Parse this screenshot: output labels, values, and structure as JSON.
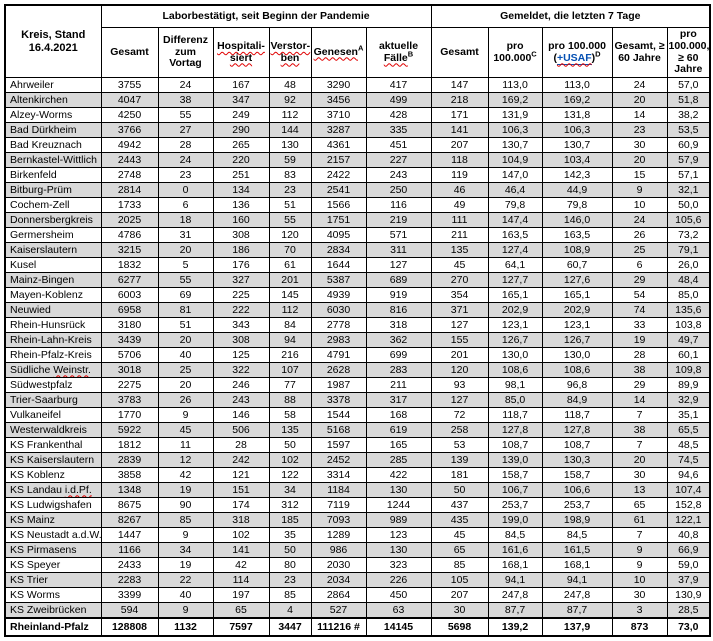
{
  "title_cell": "Kreis, Stand 16.4.2021",
  "groups": {
    "pandemic": "Laborbestätigt, seit Beginn der Pandemie",
    "last7": "Gemeldet, die letzten 7 Tage"
  },
  "columns": [
    {
      "label": "Gesamt"
    },
    {
      "label": "Differenz zum Vortag"
    },
    {
      "label": "Hospitali-siert",
      "squiggle": true
    },
    {
      "label": "Verstor-ben",
      "squiggle": true
    },
    {
      "label": "Genesen",
      "sup": "A",
      "squiggle": true
    },
    {
      "label": "aktuelle",
      "label2": "Fälle",
      "sup": "B",
      "squiggle": true
    },
    {
      "label": "Gesamt"
    },
    {
      "label": "pro 100.000",
      "sup": "C"
    },
    {
      "label": "pro 100.000",
      "open": "(",
      "link": "+USAF",
      "close": ")",
      "sup": "D"
    },
    {
      "label": "Gesamt, ≥ 60 Jahre"
    },
    {
      "label": "pro 100.000, ≥ 60 Jahre"
    }
  ],
  "rows": [
    {
      "n": "Ahrweiler",
      "v": [
        "3755",
        "24",
        "167",
        "48",
        "3290",
        "417",
        "147",
        "113,0",
        "113,0",
        "24",
        "57,0"
      ]
    },
    {
      "n": "Altenkirchen",
      "v": [
        "4047",
        "38",
        "347",
        "92",
        "3456",
        "499",
        "218",
        "169,2",
        "169,2",
        "20",
        "51,8"
      ]
    },
    {
      "n": "Alzey-Worms",
      "v": [
        "4250",
        "55",
        "249",
        "112",
        "3710",
        "428",
        "171",
        "131,9",
        "131,8",
        "14",
        "38,2"
      ]
    },
    {
      "n": "Bad Dürkheim",
      "v": [
        "3766",
        "27",
        "290",
        "144",
        "3287",
        "335",
        "141",
        "106,3",
        "106,3",
        "23",
        "53,5"
      ]
    },
    {
      "n": "Bad Kreuznach",
      "v": [
        "4942",
        "28",
        "265",
        "130",
        "4361",
        "451",
        "207",
        "130,7",
        "130,7",
        "30",
        "60,9"
      ]
    },
    {
      "n": "Bernkastel-Wittlich",
      "v": [
        "2443",
        "24",
        "220",
        "59",
        "2157",
        "227",
        "118",
        "104,9",
        "103,4",
        "20",
        "57,9"
      ]
    },
    {
      "n": "Birkenfeld",
      "v": [
        "2748",
        "23",
        "251",
        "83",
        "2422",
        "243",
        "119",
        "147,0",
        "142,3",
        "15",
        "57,1"
      ]
    },
    {
      "n": "Bitburg-Prüm",
      "v": [
        "2814",
        "0",
        "134",
        "23",
        "2541",
        "250",
        "46",
        "46,4",
        "44,9",
        "9",
        "32,1"
      ]
    },
    {
      "n": "Cochem-Zell",
      "v": [
        "1733",
        "6",
        "136",
        "51",
        "1566",
        "116",
        "49",
        "79,8",
        "79,8",
        "10",
        "50,0"
      ]
    },
    {
      "n": "Donnersbergkreis",
      "v": [
        "2025",
        "18",
        "160",
        "55",
        "1751",
        "219",
        "111",
        "147,4",
        "146,0",
        "24",
        "105,6"
      ]
    },
    {
      "n": "Germersheim",
      "v": [
        "4786",
        "31",
        "308",
        "120",
        "4095",
        "571",
        "211",
        "163,5",
        "163,5",
        "26",
        "73,2"
      ]
    },
    {
      "n": "Kaiserslautern",
      "v": [
        "3215",
        "20",
        "186",
        "70",
        "2834",
        "311",
        "135",
        "127,4",
        "108,9",
        "25",
        "79,1"
      ]
    },
    {
      "n": "Kusel",
      "v": [
        "1832",
        "5",
        "176",
        "61",
        "1644",
        "127",
        "45",
        "64,1",
        "60,7",
        "6",
        "26,0"
      ]
    },
    {
      "n": "Mainz-Bingen",
      "v": [
        "6277",
        "55",
        "327",
        "201",
        "5387",
        "689",
        "270",
        "127,7",
        "127,6",
        "29",
        "48,4"
      ]
    },
    {
      "n": "Mayen-Koblenz",
      "v": [
        "6003",
        "69",
        "225",
        "145",
        "4939",
        "919",
        "354",
        "165,1",
        "165,1",
        "54",
        "85,0"
      ]
    },
    {
      "n": "Neuwied",
      "v": [
        "6958",
        "81",
        "222",
        "112",
        "6030",
        "816",
        "371",
        "202,9",
        "202,9",
        "74",
        "135,6"
      ]
    },
    {
      "n": "Rhein-Hunsrück",
      "v": [
        "3180",
        "51",
        "343",
        "84",
        "2778",
        "318",
        "127",
        "123,1",
        "123,1",
        "33",
        "103,8"
      ]
    },
    {
      "n": "Rhein-Lahn-Kreis",
      "v": [
        "3439",
        "20",
        "308",
        "94",
        "2983",
        "362",
        "155",
        "126,7",
        "126,7",
        "19",
        "49,7"
      ]
    },
    {
      "n": "Rhein-Pfalz-Kreis",
      "v": [
        "5706",
        "40",
        "125",
        "216",
        "4791",
        "699",
        "201",
        "130,0",
        "130,0",
        "28",
        "60,1"
      ]
    },
    {
      "n": "Südliche Weinstr.",
      "sq": "Weinstr.",
      "v": [
        "3018",
        "25",
        "322",
        "107",
        "2628",
        "283",
        "120",
        "108,6",
        "108,6",
        "38",
        "109,8"
      ]
    },
    {
      "n": "Südwestpfalz",
      "v": [
        "2275",
        "20",
        "246",
        "77",
        "1987",
        "211",
        "93",
        "98,1",
        "96,8",
        "29",
        "89,9"
      ]
    },
    {
      "n": "Trier-Saarburg",
      "v": [
        "3783",
        "26",
        "243",
        "88",
        "3378",
        "317",
        "127",
        "85,0",
        "84,9",
        "14",
        "32,9"
      ]
    },
    {
      "n": "Vulkaneifel",
      "v": [
        "1770",
        "9",
        "146",
        "58",
        "1544",
        "168",
        "72",
        "118,7",
        "118,7",
        "7",
        "35,1"
      ]
    },
    {
      "n": "Westerwaldkreis",
      "v": [
        "5922",
        "45",
        "506",
        "135",
        "5168",
        "619",
        "258",
        "127,8",
        "127,8",
        "38",
        "65,5"
      ]
    },
    {
      "n": "KS Frankenthal",
      "v": [
        "1812",
        "11",
        "28",
        "50",
        "1597",
        "165",
        "53",
        "108,7",
        "108,7",
        "7",
        "48,5"
      ]
    },
    {
      "n": "KS Kaiserslautern",
      "v": [
        "2839",
        "12",
        "242",
        "102",
        "2452",
        "285",
        "139",
        "139,0",
        "130,3",
        "20",
        "74,5"
      ]
    },
    {
      "n": "KS Koblenz",
      "v": [
        "3858",
        "42",
        "121",
        "122",
        "3314",
        "422",
        "181",
        "158,7",
        "158,7",
        "30",
        "94,6"
      ]
    },
    {
      "n": "KS Landau i.d.Pf.",
      "sq": "i.d.Pf.",
      "v": [
        "1348",
        "19",
        "151",
        "34",
        "1184",
        "130",
        "50",
        "106,7",
        "106,6",
        "13",
        "107,4"
      ]
    },
    {
      "n": "KS Ludwigshafen",
      "v": [
        "8675",
        "90",
        "174",
        "312",
        "7119",
        "1244",
        "437",
        "253,7",
        "253,7",
        "65",
        "152,8"
      ]
    },
    {
      "n": "KS Mainz",
      "v": [
        "8267",
        "85",
        "318",
        "185",
        "7093",
        "989",
        "435",
        "199,0",
        "198,9",
        "61",
        "122,1"
      ]
    },
    {
      "n": "KS Neustadt a.d.W.",
      "v": [
        "1447",
        "9",
        "102",
        "35",
        "1289",
        "123",
        "45",
        "84,5",
        "84,5",
        "7",
        "40,8"
      ]
    },
    {
      "n": "KS Pirmasens",
      "v": [
        "1166",
        "34",
        "141",
        "50",
        "986",
        "130",
        "65",
        "161,6",
        "161,5",
        "9",
        "66,9"
      ]
    },
    {
      "n": "KS Speyer",
      "v": [
        "2433",
        "19",
        "42",
        "80",
        "2030",
        "323",
        "85",
        "168,1",
        "168,1",
        "9",
        "59,0"
      ]
    },
    {
      "n": "KS Trier",
      "v": [
        "2283",
        "22",
        "114",
        "23",
        "2034",
        "226",
        "105",
        "94,1",
        "94,1",
        "10",
        "37,9"
      ]
    },
    {
      "n": "KS Worms",
      "v": [
        "3399",
        "40",
        "197",
        "85",
        "2864",
        "450",
        "207",
        "247,8",
        "247,8",
        "30",
        "130,9"
      ]
    },
    {
      "n": "KS Zweibrücken",
      "v": [
        "594",
        "9",
        "65",
        "4",
        "527",
        "63",
        "30",
        "87,7",
        "87,7",
        "3",
        "28,5"
      ]
    }
  ],
  "total": {
    "n": "Rheinland-Pfalz",
    "v": [
      "128808",
      "1132",
      "7597",
      "3447",
      "111216 #",
      "14145",
      "5698",
      "139,2",
      "137,9",
      "873",
      "73,0"
    ]
  }
}
